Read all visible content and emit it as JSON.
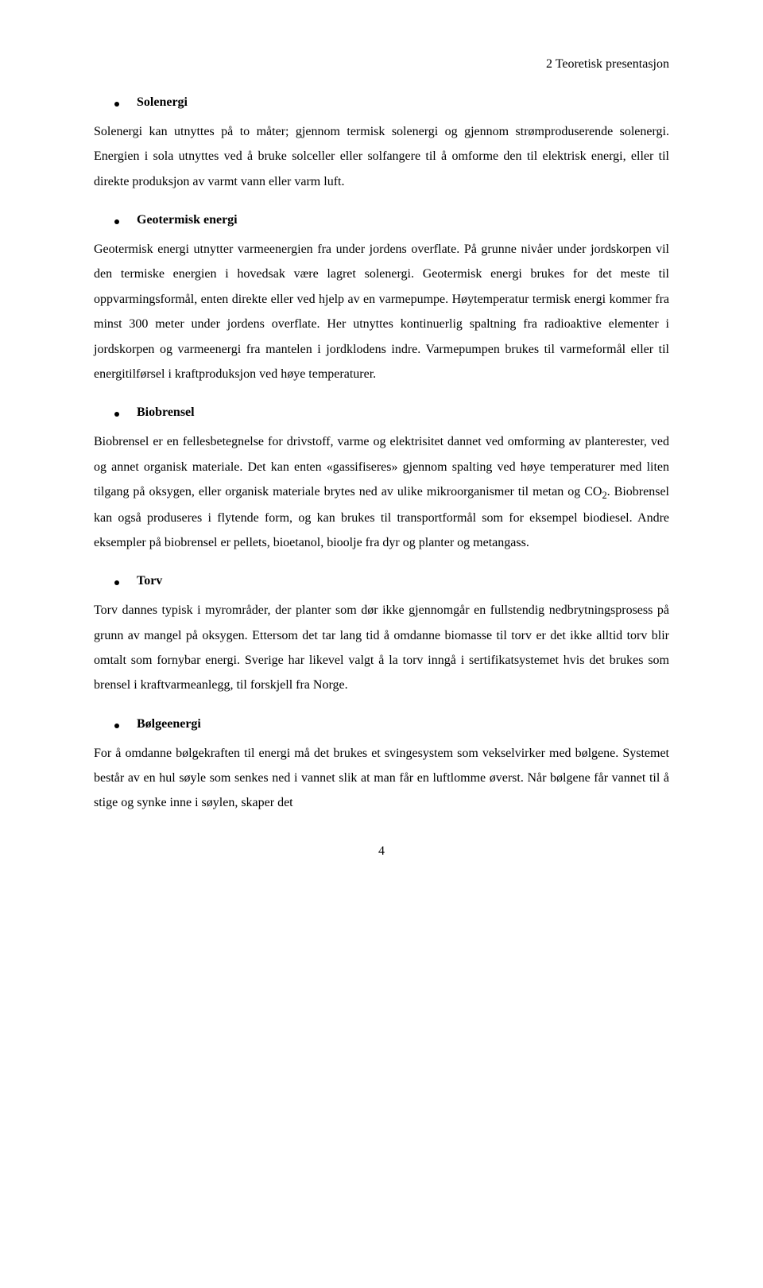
{
  "header": {
    "right_note": "2 Teoretisk presentasjon"
  },
  "sections": [
    {
      "heading": "Solenergi",
      "para": "Solenergi kan utnyttes på to måter; gjennom termisk solenergi og gjennom strømproduserende solenergi. Energien i sola utnyttes ved å bruke solceller eller solfangere til å omforme den til elektrisk energi, eller til direkte produksjon av varmt vann eller varm luft."
    },
    {
      "heading": "Geotermisk energi",
      "para": "Geotermisk energi utnytter varmeenergien fra under jordens overflate. På grunne nivåer under jordskorpen vil den termiske energien i hovedsak være lagret solenergi. Geotermisk energi brukes for det meste til oppvarmingsformål, enten direkte eller ved hjelp av en varmepumpe. Høytemperatur termisk energi kommer fra minst 300 meter under jordens overflate. Her utnyttes kontinuerlig spaltning fra radioaktive elementer i jordskorpen og varmeenergi fra mantelen i jordklodens indre. Varmepumpen brukes til varmeformål eller til energitilførsel i kraftproduksjon ved høye temperaturer."
    },
    {
      "heading": "Biobrensel",
      "para_html": "Biobrensel er en fellesbetegnelse for drivstoff, varme og elektrisitet dannet ved omforming av planterester, ved og annet organisk materiale. Det kan enten «gassifiseres» gjennom spalting ved høye temperaturer med liten tilgang på oksygen, eller organisk materiale brytes ned av ulike mikroorganismer til metan og CO<span class=\"sub2\">2</span>. Biobrensel kan også produseres i flytende form, og kan brukes til transportformål som for eksempel biodiesel. Andre eksempler på biobrensel er pellets, bioetanol, bioolje fra dyr og planter og metangass."
    },
    {
      "heading": "Torv",
      "para": "Torv dannes typisk i myrområder, der planter som dør ikke gjennomgår en fullstendig nedbrytningsprosess på grunn av mangel på oksygen. Ettersom det tar lang tid å omdanne biomasse til torv er det ikke alltid torv blir omtalt som fornybar energi. Sverige har likevel valgt å la torv inngå i sertifikatsystemet hvis det brukes som brensel i kraftvarmeanlegg, til forskjell fra Norge."
    },
    {
      "heading": "Bølgeenergi",
      "para": "For å omdanne bølgekraften til energi må det brukes et svingesystem som vekselvirker med bølgene. Systemet består av en hul søyle som senkes ned i vannet slik at man får en luftlomme øverst. Når bølgene får vannet til å stige og synke inne i søylen, skaper det"
    }
  ],
  "page_number": "4",
  "colors": {
    "text": "#000000",
    "background": "#ffffff"
  },
  "typography": {
    "font_family": "Times New Roman",
    "body_fontsize_pt": 12,
    "line_height": 1.96
  }
}
